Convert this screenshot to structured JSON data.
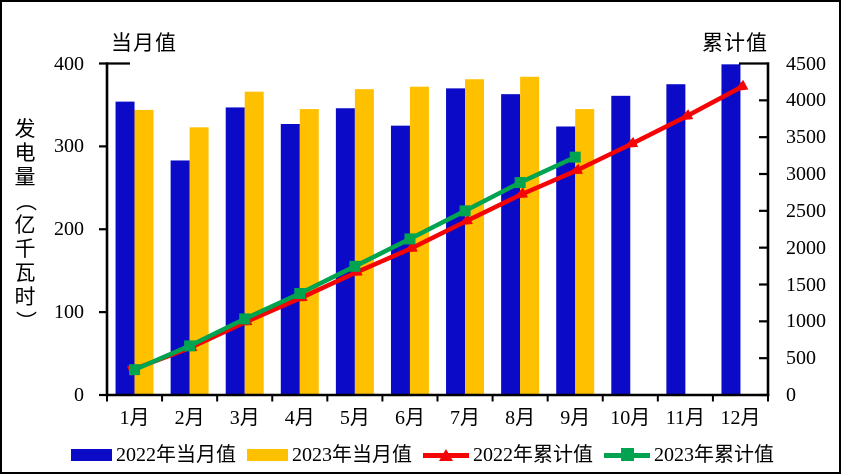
{
  "figure": {
    "left_plot_title": "当月值",
    "right_plot_title": "累计值",
    "y_axis_label": "发电量（亿千瓦时）",
    "y_axis_label_chars": [
      "发",
      "电",
      "量",
      "（",
      "亿",
      "千",
      "瓦",
      "时",
      "）"
    ],
    "background": "#FFFFFF",
    "border_color": "#000000"
  },
  "chart_data": {
    "type": "bar",
    "subtype": "grouped-bars-with-cumulative-lines",
    "categories": [
      "1月",
      "2月",
      "3月",
      "4月",
      "5月",
      "6月",
      "7月",
      "8月",
      "9月",
      "10月",
      "11月",
      "12月"
    ],
    "left_axis": {
      "title": "当月值",
      "min": 0,
      "max": 400,
      "ticks": [
        0,
        100,
        200,
        300,
        400
      ],
      "label": "发电量（亿千瓦时）"
    },
    "right_axis": {
      "title": "累计值",
      "min": 0,
      "max": 4500,
      "ticks": [
        0,
        500,
        1000,
        1500,
        2000,
        2500,
        3000,
        3500,
        4000,
        4500
      ]
    },
    "grid": false,
    "legend_position": "bottom",
    "series": [
      {
        "name": "2022年当月值",
        "type": "bar",
        "axis": "left",
        "color": "#0B0BC7",
        "values": [
          354,
          283,
          347,
          327,
          346,
          325,
          370,
          363,
          324,
          361,
          375,
          399
        ]
      },
      {
        "name": "2023年当月值",
        "type": "bar",
        "axis": "left",
        "color": "#FFC000",
        "values": [
          344,
          323,
          366,
          345,
          369,
          372,
          381,
          384,
          345,
          null,
          null,
          null
        ]
      },
      {
        "name": "2022年累计值",
        "type": "line",
        "marker": "triangle",
        "axis": "right",
        "color": "#F40404",
        "values": [
          354,
          637,
          984,
          1311,
          1657,
          1982,
          2352,
          2715,
          3039,
          3400,
          3775,
          4174
        ]
      },
      {
        "name": "2023年累计值",
        "type": "line",
        "marker": "square",
        "axis": "right",
        "color": "#00A34F",
        "values": [
          344,
          667,
          1033,
          1378,
          1747,
          2119,
          2500,
          2884,
          3229,
          null,
          null,
          null
        ]
      }
    ]
  },
  "legend": {
    "items": [
      {
        "label": "2022年当月值",
        "swatch": "bar",
        "color": "#0B0BC7"
      },
      {
        "label": "2023年当月值",
        "swatch": "bar",
        "color": "#FFC000"
      },
      {
        "label": "2022年累计值",
        "swatch": "line-triangle",
        "color": "#F40404"
      },
      {
        "label": "2023年累计值",
        "swatch": "line-square",
        "color": "#00A34F"
      }
    ]
  }
}
